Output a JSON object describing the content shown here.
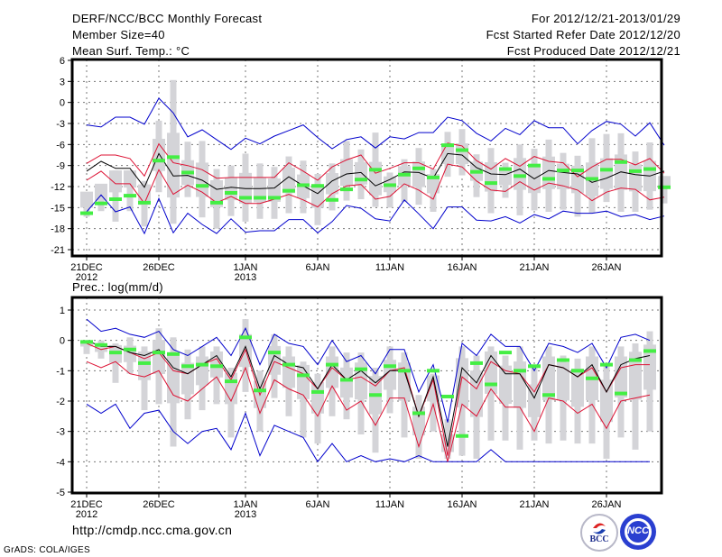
{
  "header": {
    "left": [
      "DERF/NCC/BCC Monthly Forecast",
      "Member Size=40",
      "Mean Surf. Temp.: °C"
    ],
    "right": [
      "For 2012/12/21-2013/01/29",
      "Fcst Started Refer Date 2012/12/20",
      "Fcst Produced Date 2012/12/21"
    ]
  },
  "footer": {
    "url": "http://cmdp.ncc.cma.gov.cn",
    "credit": "GrADS: COLA/IGES",
    "logo_left": "BCC",
    "logo_right": "NCC"
  },
  "colors": {
    "envelope": "#0000cc",
    "spread": "#dd1133",
    "mean": "#000000",
    "member_box": "#d4d4d8",
    "marker": "#44ee44"
  },
  "chart_data": [
    {
      "type": "line",
      "title": "Mean Surf. Temp.: °C",
      "xlabel": "",
      "ylabel": "°C",
      "ylim": [
        -21,
        6
      ],
      "yticks": [
        6,
        3,
        0,
        -3,
        -6,
        -9,
        -12,
        -15,
        -18,
        -21
      ],
      "xtick_labels": [
        {
          "day": 0,
          "label": "21DEC",
          "sub": "2012"
        },
        {
          "day": 5,
          "label": "26DEC",
          "sub": ""
        },
        {
          "day": 11,
          "label": "1JAN",
          "sub": "2013"
        },
        {
          "day": 16,
          "label": "6JAN",
          "sub": ""
        },
        {
          "day": 21,
          "label": "11JAN",
          "sub": ""
        },
        {
          "day": 26,
          "label": "16JAN",
          "sub": ""
        },
        {
          "day": 31,
          "label": "21JAN",
          "sub": ""
        },
        {
          "day": 36,
          "label": "26JAN",
          "sub": ""
        }
      ],
      "grid": true,
      "legend": "none",
      "series": [
        {
          "name": "max",
          "color": "#0000cc",
          "values": [
            -3.2,
            -3.5,
            -2.1,
            -2.1,
            -3.1,
            0.6,
            -1.5,
            -4.9,
            -3.9,
            -5.3,
            -6.7,
            -5.1,
            -5.9,
            -4.8,
            -4.0,
            -3.2,
            -5.0,
            -6.6,
            -5.3,
            -4.9,
            -6.5,
            -4.9,
            -5.2,
            -4.3,
            -4.3,
            -2.1,
            -2.6,
            -4.4,
            -5.5,
            -3.7,
            -4.6,
            -2.6,
            -3.6,
            -3.6,
            -5.9,
            -4.0,
            -2.7,
            -3.1,
            -4.8,
            -2.9,
            -6.1
          ]
        },
        {
          "name": "upper",
          "color": "#dd1133",
          "values": [
            -8.7,
            -7.5,
            -7.5,
            -8.0,
            -10.5,
            -5.9,
            -8.6,
            -9.0,
            -9.6,
            -10.8,
            -10.7,
            -10.7,
            -10.7,
            -10.7,
            -8.6,
            -9.8,
            -11.1,
            -9.2,
            -8.2,
            -7.5,
            -10.1,
            -9.4,
            -8.6,
            -8.6,
            -9.5,
            -5.8,
            -6.2,
            -8.3,
            -9.5,
            -8.0,
            -9.1,
            -7.7,
            -8.4,
            -8.6,
            -10.6,
            -9.2,
            -8.1,
            -8.1,
            -8.9,
            -8.0,
            -10.1
          ]
        },
        {
          "name": "mean",
          "color": "#000000",
          "values": [
            -9.8,
            -8.4,
            -9.4,
            -9.4,
            -12.1,
            -7.3,
            -10.5,
            -10.4,
            -11.1,
            -12.4,
            -12.1,
            -12.3,
            -12.3,
            -12.2,
            -10.6,
            -11.9,
            -13.0,
            -11.2,
            -10.2,
            -10.0,
            -11.9,
            -11.0,
            -9.9,
            -10.0,
            -10.8,
            -7.3,
            -7.5,
            -9.3,
            -10.2,
            -10.3,
            -9.5,
            -10.9,
            -9.7,
            -10.0,
            -10.2,
            -11.4,
            -10.8,
            -9.9,
            -10.3,
            -10.5,
            -9.8
          ]
        },
        {
          "name": "lower",
          "color": "#dd1133",
          "values": [
            -11.1,
            -9.8,
            -11.6,
            -11.6,
            -14.4,
            -9.6,
            -13.1,
            -11.8,
            -12.8,
            -14.3,
            -13.4,
            -14.4,
            -14.4,
            -13.8,
            -13.1,
            -13.9,
            -14.9,
            -13.0,
            -11.9,
            -11.7,
            -13.8,
            -13.4,
            -11.6,
            -12.5,
            -13.8,
            -8.8,
            -9.2,
            -11.2,
            -12.5,
            -12.7,
            -11.3,
            -12.5,
            -11.5,
            -11.9,
            -12.5,
            -14.0,
            -12.8,
            -12.2,
            -12.4,
            -13.9,
            -13.5
          ]
        },
        {
          "name": "min",
          "color": "#0000cc",
          "values": [
            -15.6,
            -13.2,
            -15.6,
            -14.9,
            -18.7,
            -13.7,
            -18.6,
            -15.8,
            -17.4,
            -18.7,
            -16.6,
            -18.5,
            -18.3,
            -18.3,
            -16.7,
            -16.7,
            -18.6,
            -17.0,
            -14.7,
            -15.1,
            -16.6,
            -16.9,
            -13.9,
            -15.9,
            -18.0,
            -14.9,
            -14.9,
            -16.8,
            -16.9,
            -16.3,
            -17.2,
            -16.0,
            -16.6,
            -15.5,
            -15.8,
            -15.8,
            -15.5,
            -16.3,
            -16.0,
            -16.7,
            -16.2
          ]
        },
        {
          "name": "observed",
          "color": "#44ee44",
          "values": [
            -15.8,
            -14.4,
            -13.8,
            -13.3,
            -14.3,
            -8.3,
            -7.8,
            -10.0,
            -11.9,
            -14.3,
            -12.9,
            -13.6,
            -13.6,
            -13.6,
            -12.6,
            -11.8,
            -11.9,
            -13.9,
            -12.4,
            -11.0,
            -9.6,
            -11.8,
            -10.3,
            -9.4,
            -10.7,
            -6.1,
            -6.8,
            -9.9,
            -11.5,
            -9.5,
            -10.5,
            -9.0,
            -10.9,
            -9.7,
            -9.7,
            -10.9,
            -9.6,
            -8.5,
            -9.8,
            -9.5,
            -12.1
          ]
        },
        {
          "name": "box_top",
          "color": "#d4d4d8",
          "values": [
            -15.0,
            -14.0,
            -9.7,
            -9.7,
            -11.2,
            -2.6,
            3.2,
            -5.6,
            -5.5,
            -9.5,
            -9.0,
            -7.3,
            -8.7,
            -9.2,
            -7.7,
            -8.3,
            -10.2,
            -8.7,
            -5.5,
            -6.7,
            -4.3,
            -10.0,
            -8.1,
            -6.5,
            -9.5,
            -4.2,
            -3.8,
            -7.4,
            -6.5,
            -8.6,
            -6.0,
            -6.6,
            -5.3,
            -7.2,
            -7.6,
            -5.1,
            -4.5,
            -4.4,
            -7.0,
            -5.7,
            -10.5
          ]
        },
        {
          "name": "box_bottom",
          "color": "#d4d4d8",
          "values": [
            -16.3,
            -15.5,
            -17.0,
            -15.5,
            -17.7,
            -12.8,
            -17.3,
            -13.5,
            -16.4,
            -18.0,
            -16.2,
            -17.0,
            -16.6,
            -16.6,
            -15.8,
            -15.8,
            -17.5,
            -15.4,
            -14.0,
            -13.8,
            -14.9,
            -15.0,
            -14.2,
            -14.6,
            -15.6,
            -10.6,
            -10.4,
            -13.5,
            -15.8,
            -13.6,
            -16.1,
            -15.4,
            -15.6,
            -15.3,
            -16.3,
            -15.8,
            -14.2,
            -15.6,
            -15.6,
            -15.3,
            -14.4
          ]
        }
      ]
    },
    {
      "type": "line",
      "title": "Prec.: log(mm/d)",
      "xlabel": "",
      "ylabel": "log(mm/d)",
      "ylim": [
        -5,
        1.4
      ],
      "yticks": [
        1,
        0,
        -1,
        -2,
        -3,
        -4,
        -5
      ],
      "xtick_labels": [
        {
          "day": 0,
          "label": "21DEC",
          "sub": "2012"
        },
        {
          "day": 5,
          "label": "26DEC",
          "sub": ""
        },
        {
          "day": 11,
          "label": "1JAN",
          "sub": "2013"
        },
        {
          "day": 16,
          "label": "6JAN",
          "sub": ""
        },
        {
          "day": 21,
          "label": "11JAN",
          "sub": ""
        },
        {
          "day": 26,
          "label": "16JAN",
          "sub": ""
        },
        {
          "day": 31,
          "label": "21JAN",
          "sub": ""
        },
        {
          "day": 36,
          "label": "26JAN",
          "sub": ""
        }
      ],
      "grid": true,
      "legend": "none",
      "series": [
        {
          "name": "max",
          "color": "#0000cc",
          "values": [
            0.7,
            0.3,
            0.4,
            0.2,
            0.1,
            0.3,
            -0.3,
            -0.5,
            -0.2,
            0.1,
            -0.5,
            0.4,
            -0.8,
            0.2,
            -0.1,
            -0.2,
            -0.8,
            0.0,
            -0.7,
            -0.5,
            -1.1,
            -0.3,
            -0.3,
            -1.7,
            -0.8,
            -2.7,
            -0.1,
            -0.5,
            0.2,
            -0.2,
            -0.2,
            -1.0,
            -0.1,
            -0.2,
            -0.4,
            -0.1,
            -0.9,
            0.1,
            0.2,
            0.0
          ]
        },
        {
          "name": "upper",
          "color": "#dd1133",
          "values": [
            -0.1,
            -0.3,
            -0.2,
            -0.4,
            -0.6,
            -0.4,
            -1.0,
            -1.1,
            -0.8,
            -0.6,
            -1.3,
            -0.3,
            -1.8,
            -0.7,
            -0.9,
            -1.1,
            -1.6,
            -0.9,
            -1.3,
            -1.2,
            -1.5,
            -1.0,
            -0.9,
            -2.5,
            -1.3,
            -3.8,
            -1.2,
            -1.6,
            -0.7,
            -1.0,
            -1.1,
            -1.7,
            -0.8,
            -0.9,
            -1.2,
            -0.9,
            -1.7,
            -0.9,
            -0.8,
            -0.8
          ]
        },
        {
          "name": "mean",
          "color": "#000000",
          "values": [
            0.0,
            -0.2,
            -0.2,
            -0.4,
            -0.5,
            -0.3,
            -0.9,
            -1.1,
            -0.8,
            -0.5,
            -1.2,
            -0.2,
            -1.6,
            -0.5,
            -0.8,
            -0.9,
            -1.6,
            -0.8,
            -1.3,
            -1.0,
            -1.4,
            -1.0,
            -1.0,
            -2.5,
            -1.2,
            -3.5,
            -0.9,
            -1.4,
            -0.5,
            -1.1,
            -1.1,
            -1.9,
            -0.8,
            -0.9,
            -1.2,
            -0.8,
            -1.7,
            -0.8,
            -0.6,
            -0.5
          ]
        },
        {
          "name": "lower",
          "color": "#dd1133",
          "values": [
            -0.7,
            -0.9,
            -0.7,
            -1.1,
            -1.2,
            -1.0,
            -1.8,
            -2.0,
            -1.6,
            -1.2,
            -2.0,
            -0.9,
            -2.4,
            -1.3,
            -1.6,
            -1.8,
            -2.5,
            -1.5,
            -2.3,
            -2.0,
            -2.8,
            -1.9,
            -1.9,
            -3.5,
            -2.1,
            -4.0,
            -2.1,
            -2.5,
            -1.6,
            -2.2,
            -2.2,
            -3.0,
            -1.9,
            -2.0,
            -2.4,
            -2.1,
            -2.9,
            -2.0,
            -1.9,
            -1.8
          ]
        },
        {
          "name": "min",
          "color": "#0000cc",
          "values": [
            -2.1,
            -2.4,
            -2.1,
            -2.9,
            -2.4,
            -2.3,
            -3.0,
            -3.4,
            -3.0,
            -2.9,
            -3.6,
            -2.4,
            -3.8,
            -2.8,
            -3.0,
            -3.2,
            -4.0,
            -3.4,
            -4.0,
            -3.8,
            -4.0,
            -3.9,
            -4.0,
            -3.8,
            -4.0,
            -4.0,
            -4.0,
            -4.0,
            -3.6,
            -4.0,
            -4.0,
            -4.0,
            -4.0,
            -4.0,
            -4.0,
            -4.0,
            -4.0,
            -4.0,
            -4.0,
            -4.0
          ]
        },
        {
          "name": "observed",
          "color": "#44ee44",
          "values": [
            -0.05,
            -0.15,
            -0.4,
            -0.3,
            -0.75,
            -0.4,
            -0.45,
            -0.85,
            -0.8,
            -0.85,
            -1.35,
            0.1,
            -1.65,
            -0.4,
            -0.8,
            -1.15,
            -1.7,
            -0.8,
            -1.3,
            -0.95,
            -1.8,
            -0.85,
            -1.0,
            -2.4,
            -1.0,
            -1.85,
            -3.15,
            -0.75,
            -1.45,
            -0.4,
            -1.0,
            -0.85,
            -1.8,
            -0.65,
            -1.0,
            -1.25,
            -0.8,
            -1.75,
            -0.65,
            -0.35
          ]
        },
        {
          "name": "box_top",
          "color": "#d4d4d8",
          "values": [
            0.0,
            0.0,
            -0.1,
            0.1,
            -0.2,
            0.4,
            0.1,
            -0.3,
            -0.2,
            -0.2,
            -0.9,
            0.7,
            -1.0,
            0.2,
            -0.2,
            -0.7,
            -1.1,
            -0.2,
            -0.4,
            -0.4,
            -0.9,
            -0.2,
            -0.4,
            -1.8,
            -1.1,
            -2.6,
            -0.2,
            -0.5,
            -0.2,
            -0.5,
            -0.2,
            -0.9,
            -0.2,
            -0.5,
            -0.6,
            -0.2,
            -0.8,
            -0.2,
            -0.1,
            0.3
          ]
        },
        {
          "name": "box_bottom",
          "color": "#d4d4d8",
          "values": [
            -0.45,
            -0.6,
            -1.4,
            -1.1,
            -2.3,
            -2.1,
            -3.5,
            -2.6,
            -2.3,
            -2.1,
            -3.2,
            -1.7,
            -3.0,
            -1.9,
            -2.5,
            -3.2,
            -3.4,
            -2.5,
            -2.6,
            -3.1,
            -3.7,
            -2.4,
            -3.2,
            -3.9,
            -3.0,
            -3.9,
            -3.8,
            -3.9,
            -3.3,
            -3.3,
            -3.6,
            -3.3,
            -3.4,
            -3.3,
            -3.4,
            -3.4,
            -3.9,
            -3.2,
            -3.6,
            -3.0
          ]
        }
      ]
    }
  ]
}
